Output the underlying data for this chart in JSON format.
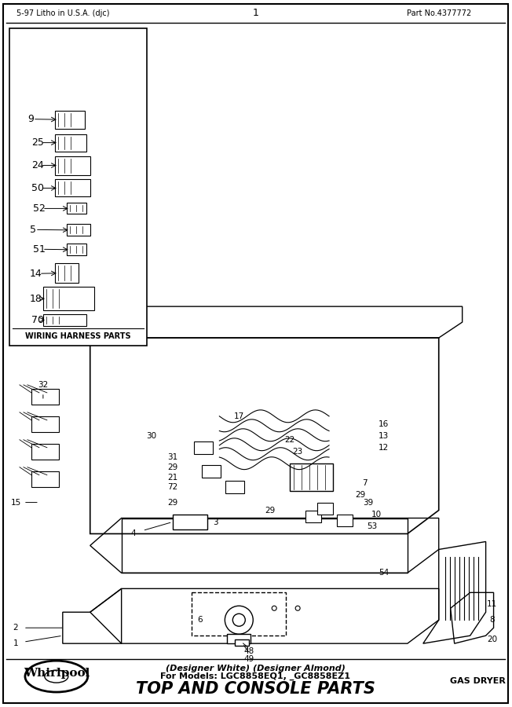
{
  "title": "TOP AND CONSOLE PARTS",
  "subtitle_line1": "For Models: LGC8858EQ1, _GC8858EZ1",
  "subtitle_line2": "(Designer White) (Designer Almond)",
  "top_right_text": "GAS DRYER",
  "bottom_left_text": "5-97 Litho in U.S.A. (djc)",
  "bottom_center_text": "1",
  "bottom_right_text": "Part No.4377772",
  "wiring_box_title": "WIRING HARNESS PARTS",
  "wiring_box_items": [
    "70",
    "18",
    "14",
    "51",
    "5",
    "52",
    "50",
    "24",
    "25",
    "9"
  ],
  "bg_color": "#ffffff",
  "border_color": "#000000",
  "text_color": "#000000",
  "fig_width": 6.52,
  "fig_height": 9.0,
  "dpi": 100,
  "main_diagram_parts": {
    "labels_left": [
      "1",
      "2",
      "15",
      "32",
      "4"
    ],
    "labels_top": [
      "49",
      "48",
      "6",
      "54"
    ],
    "labels_right": [
      "20",
      "8",
      "11"
    ],
    "labels_mid": [
      "53",
      "10",
      "39",
      "29",
      "7",
      "3",
      "29",
      "72",
      "21",
      "29",
      "31",
      "30",
      "17",
      "23",
      "22",
      "12",
      "13",
      "16",
      "29"
    ]
  }
}
